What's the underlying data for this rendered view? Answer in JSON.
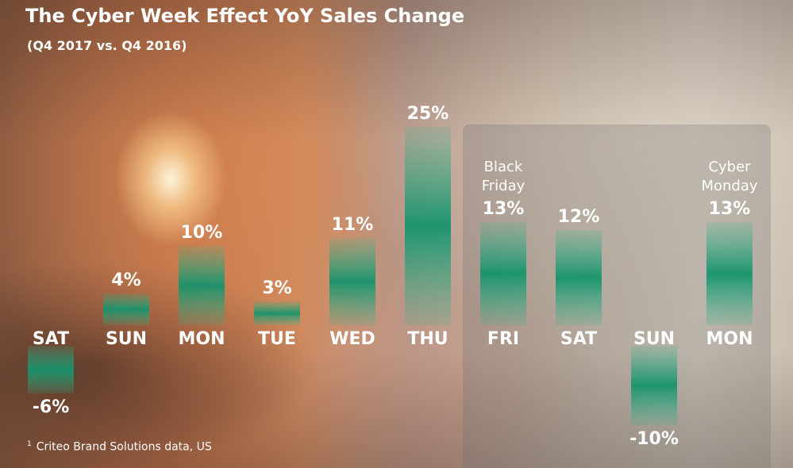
{
  "title": "The Cyber Week Effect YoY Sales Change",
  "subtitle": "(Q4 2017 vs. Q4 2016)",
  "footnote": {
    "marker": "1",
    "text": "Criteo Brand Solutions data, US"
  },
  "colors": {
    "bar_edge": "#2bb58a",
    "bar_mid": "#16936c",
    "text": "#ffffff",
    "panel": "rgba(110,110,110,0.28)"
  },
  "chart_data": {
    "type": "bar",
    "title": "The Cyber Week Effect YoY Sales Change",
    "subtitle": "(Q4 2017 vs. Q4 2016)",
    "categories": [
      "SAT",
      "SUN",
      "MON",
      "TUE",
      "WED",
      "THU",
      "FRI",
      "SAT",
      "SUN",
      "MON"
    ],
    "values": [
      -6,
      4,
      10,
      3,
      11,
      25,
      13,
      12,
      -10,
      13
    ],
    "value_labels": [
      "-6%",
      "4%",
      "10%",
      "3%",
      "11%",
      "25%",
      "13%",
      "12%",
      "-10%",
      "13%"
    ],
    "unit": "%",
    "annotations": [
      {
        "category_index": 6,
        "text": [
          "Black",
          "Friday"
        ]
      },
      {
        "category_index": 9,
        "text": [
          "Cyber",
          "Monday"
        ]
      }
    ],
    "highlight_range": [
      6,
      9
    ],
    "grid": false,
    "legend": "none"
  }
}
